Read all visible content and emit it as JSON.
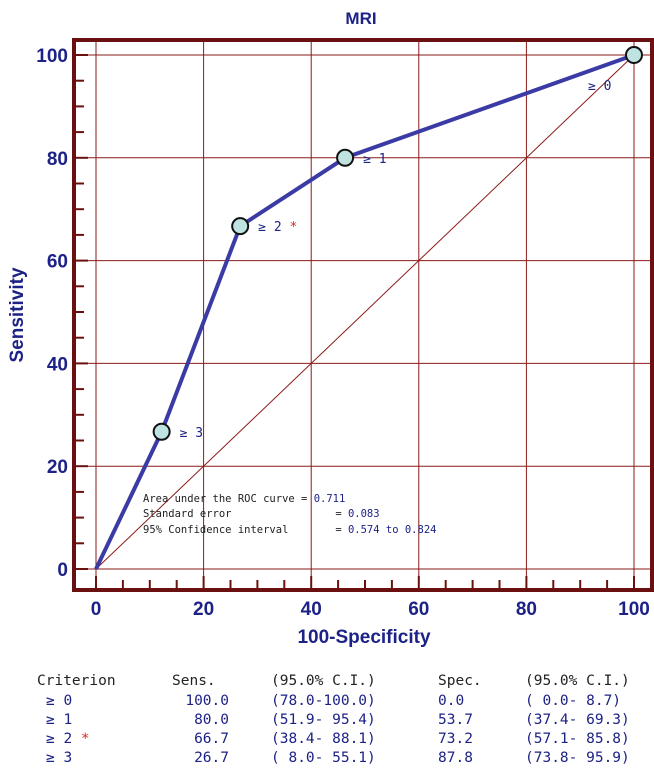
{
  "chart_data": {
    "type": "line",
    "title": "MRI",
    "xlabel": "100-Specificity",
    "ylabel": "Sensitivity",
    "xlim": [
      0,
      100
    ],
    "ylim": [
      0,
      100
    ],
    "xticks": [
      0,
      20,
      40,
      60,
      80,
      100
    ],
    "yticks": [
      0,
      20,
      40,
      60,
      80,
      100
    ],
    "grid": true,
    "series": [
      {
        "x": [
          0,
          12.2,
          26.8,
          46.3,
          100
        ],
        "y": [
          0,
          26.7,
          66.7,
          80.0,
          100
        ],
        "labels": [
          "",
          "≥ 3",
          "≥ 2",
          "≥ 1",
          "≥ 0"
        ],
        "optimal": [
          false,
          false,
          true,
          false,
          false
        ],
        "color": "#3b3ba5"
      }
    ],
    "reference_line": {
      "x": [
        0,
        100
      ],
      "y": [
        0,
        100
      ],
      "color": "#8b1a1a"
    },
    "star_symbol": "*",
    "annotations": [
      {
        "label": "Area under the ROC curve",
        "value": "0.711"
      },
      {
        "label": "Standard error",
        "value": "0.083"
      },
      {
        "label": "95% Confidence interval",
        "value": "0.574 to 0.824"
      }
    ],
    "colors": {
      "frame": "#6b1010",
      "grid": "#8b1a1a",
      "curve": "#3b3ba5",
      "marker_fill": "#bfe3e0",
      "text": "#1d2286",
      "star": "#e0241d"
    }
  },
  "table": {
    "headers": [
      "Criterion",
      "Sens.",
      "(95.0% C.I.)",
      "Spec.",
      "(95.0% C.I.)"
    ],
    "rows": [
      {
        "criterion": "≥ 0",
        "star": "",
        "sens": "100.0",
        "sens_ci": "(78.0-100.0)",
        "spec": "0.0",
        "spec_ci": "( 0.0- 8.7)"
      },
      {
        "criterion": "≥ 1",
        "star": "",
        "sens": "80.0",
        "sens_ci": "(51.9- 95.4)",
        "spec": "53.7",
        "spec_ci": "(37.4- 69.3)"
      },
      {
        "criterion": "≥ 2",
        "star": "*",
        "sens": "66.7",
        "sens_ci": "(38.4- 88.1)",
        "spec": "73.2",
        "spec_ci": "(57.1- 85.8)"
      },
      {
        "criterion": "≥ 3",
        "star": "",
        "sens": "26.7",
        "sens_ci": "( 8.0- 55.1)",
        "spec": "87.8",
        "spec_ci": "(73.8- 95.9)"
      }
    ]
  }
}
